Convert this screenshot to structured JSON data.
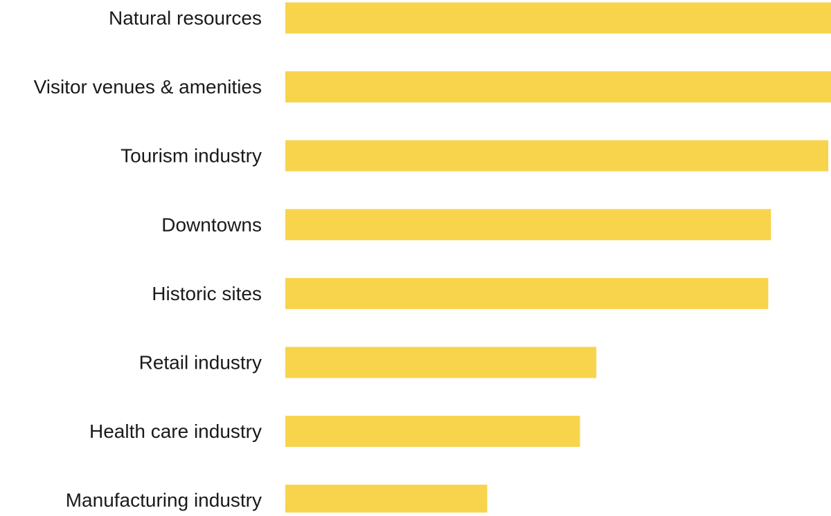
{
  "chart_data": {
    "type": "bar",
    "orientation": "horizontal",
    "categories": [
      "Natural resources",
      "Visitor venues & amenities",
      "Tourism industry",
      "Downtowns",
      "Historic sites",
      "Retail industry",
      "Health care industry",
      "Manufacturing industry"
    ],
    "values": [
      100,
      100,
      99.5,
      89,
      88.5,
      57,
      54,
      37
    ],
    "title": "",
    "xlabel": "",
    "ylabel": "",
    "xlim": [
      0,
      100
    ],
    "grid": false,
    "legend": "none",
    "bar_color": "#F7D44C"
  }
}
